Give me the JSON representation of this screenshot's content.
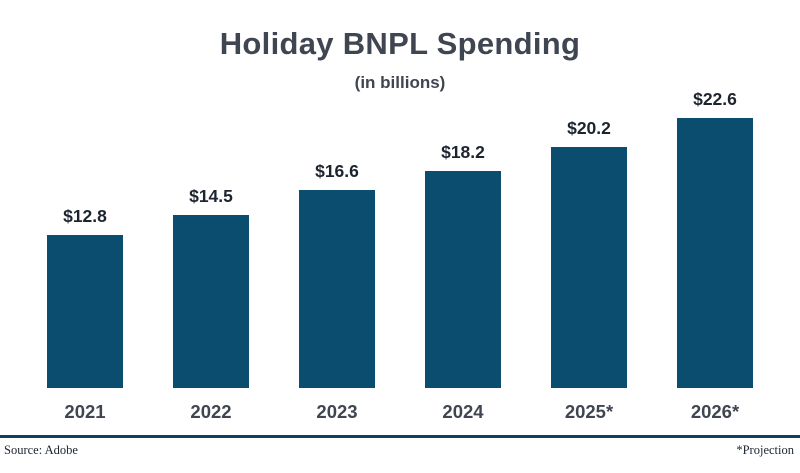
{
  "chart_data": {
    "type": "bar",
    "title": "Holiday BNPL Spending",
    "subtitle": "(in billions)",
    "categories": [
      "2021",
      "2022",
      "2023",
      "2024",
      "2025*",
      "2026*"
    ],
    "values": [
      12.8,
      14.5,
      16.6,
      18.2,
      20.2,
      22.6
    ],
    "value_labels": [
      "$12.8",
      "$14.5",
      "$16.6",
      "$18.2",
      "$20.2",
      "$22.6"
    ],
    "ylim": [
      0,
      22.6
    ],
    "bar_color": "#0b4d6f",
    "axis_line_color": "#123f5f",
    "grid": false,
    "legend": false,
    "xlabel": "",
    "ylabel": ""
  },
  "footer": {
    "source": "Source: Adobe",
    "note": "*Projection"
  }
}
